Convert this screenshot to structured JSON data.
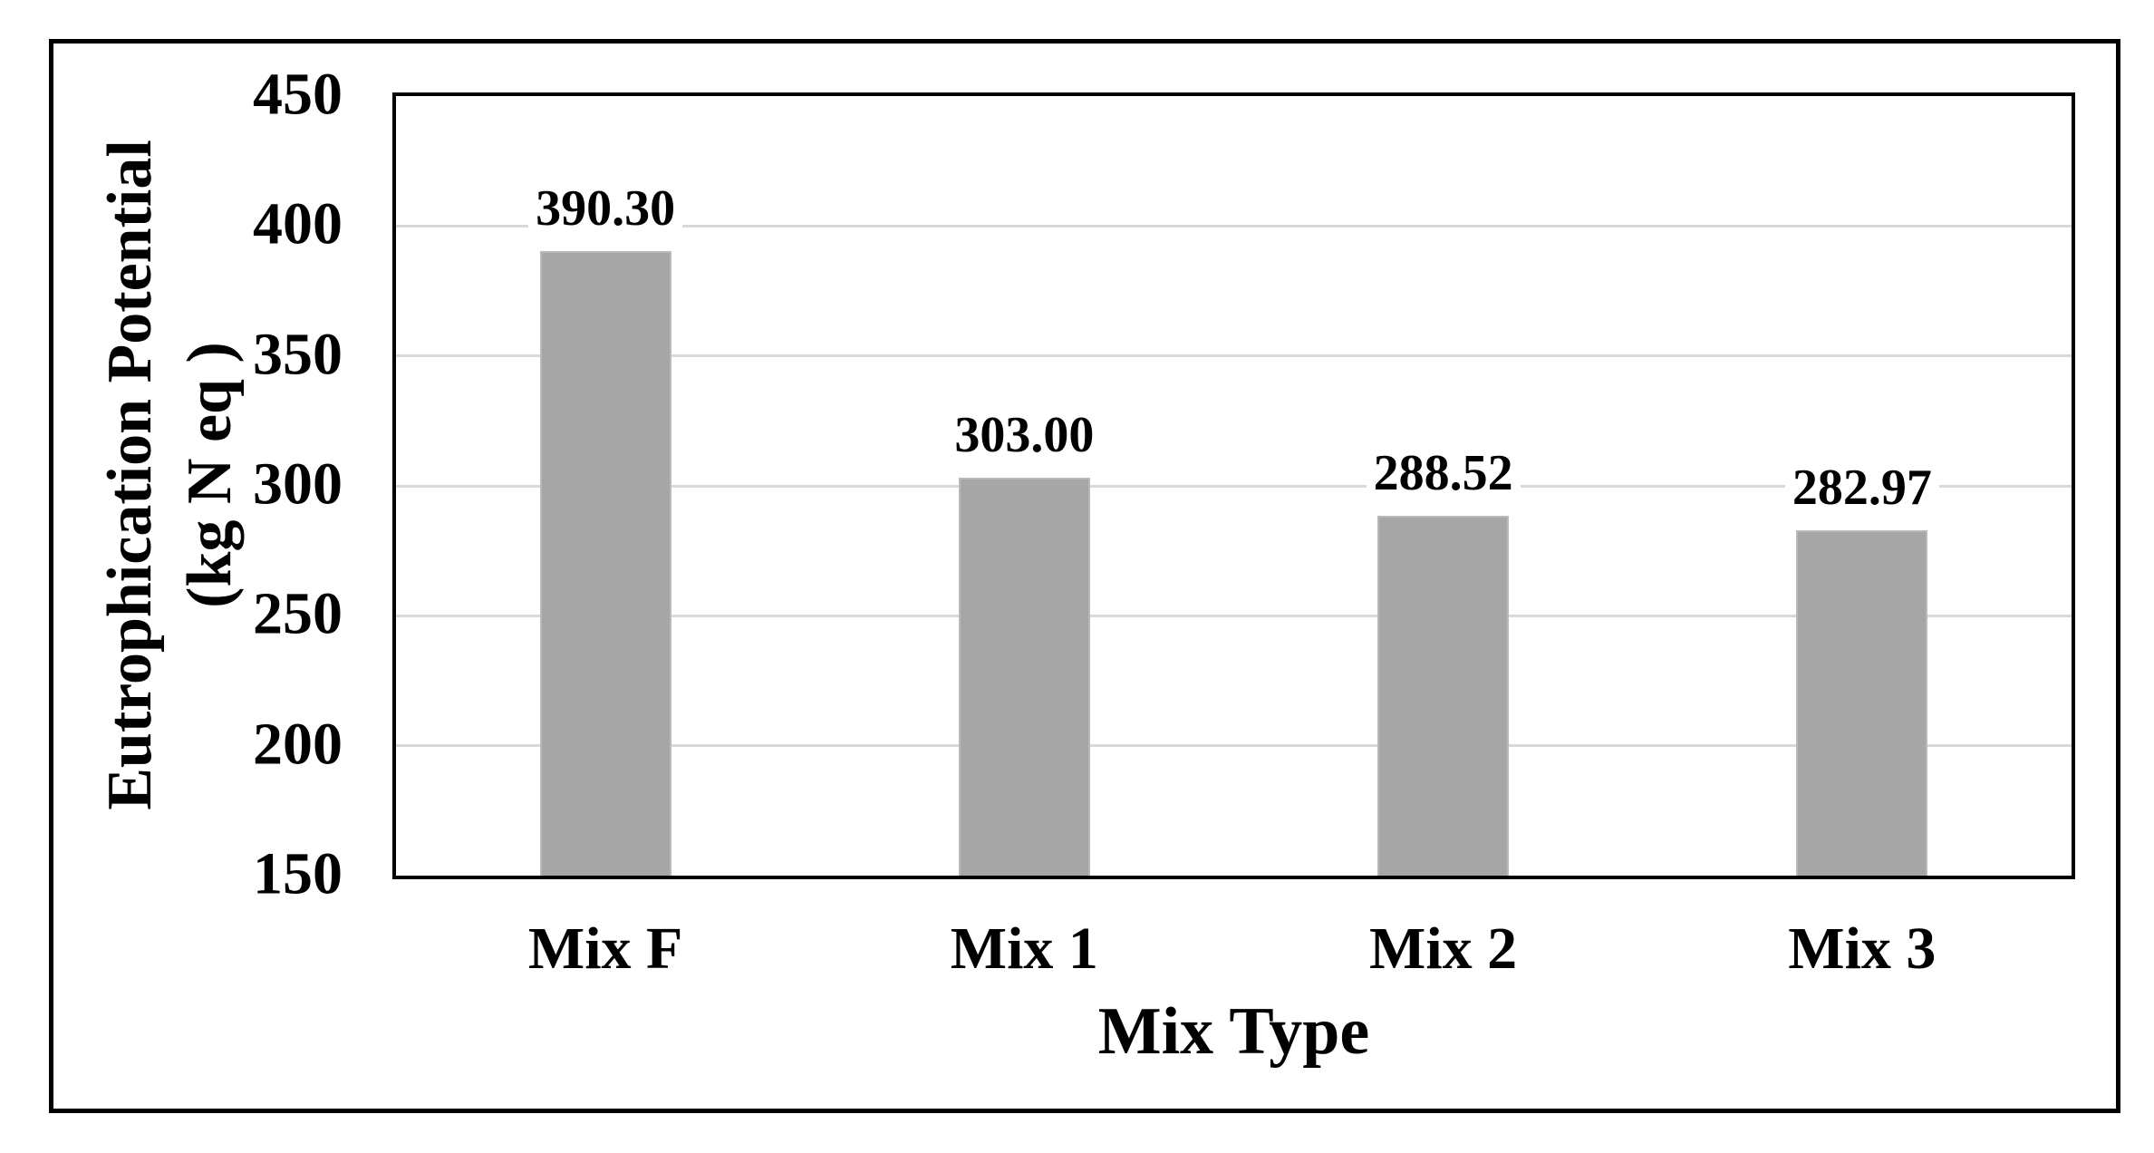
{
  "figure": {
    "background": "#ffffff",
    "outer_border_color": "#000000",
    "plot_border_color": "#000000"
  },
  "chart_data": {
    "type": "bar",
    "title": "",
    "categories": [
      "Mix F",
      "Mix 1",
      "Mix 2",
      "Mix 3"
    ],
    "values": [
      390.3,
      303.0,
      288.52,
      282.97
    ],
    "data_labels": [
      "390.30",
      "303.00",
      "288.52",
      "282.97"
    ],
    "xlabel": "Mix Type",
    "ylabel_line1": "Eutrophication Potential",
    "ylabel_line2": "(kg N eq )",
    "ylim": [
      150,
      450
    ],
    "ytick_interval": 50,
    "yticks": [
      "450",
      "400",
      "350",
      "300",
      "250",
      "200",
      "150"
    ],
    "grid": "horizontal",
    "legend": "none",
    "bar_color": "#a6a6a6",
    "bar_edge_color": "#b9b9b9",
    "gridline_color": "#d9d9d9",
    "text_color": "#000000"
  }
}
